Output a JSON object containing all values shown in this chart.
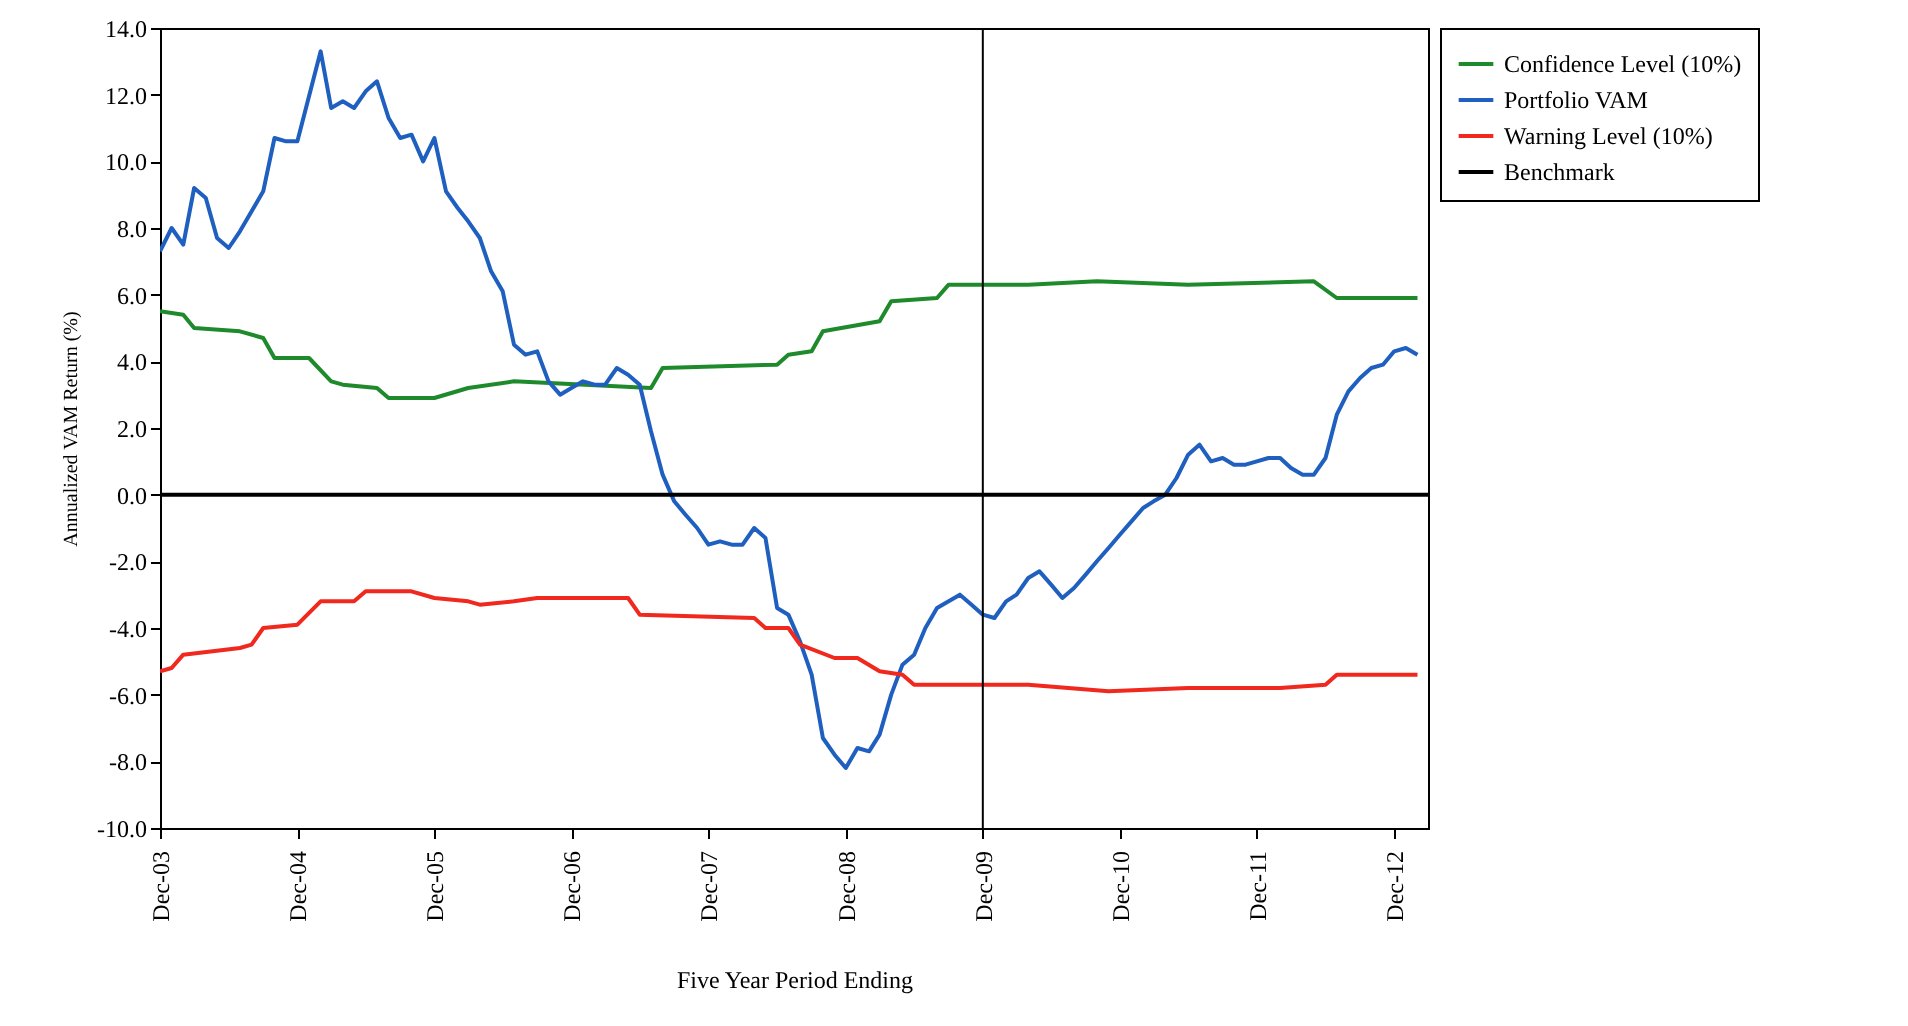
{
  "chart_data": {
    "type": "line",
    "xlabel": "Five Year Period Ending",
    "ylabel": "Annualized VAM Return (%)",
    "xlim": [
      "2003-12",
      "2013-03"
    ],
    "xticks": [
      {
        "value": "2003-12",
        "label": "Dec-03"
      },
      {
        "value": "2004-12",
        "label": "Dec-04"
      },
      {
        "value": "2005-12",
        "label": "Dec-05"
      },
      {
        "value": "2006-12",
        "label": "Dec-06"
      },
      {
        "value": "2007-12",
        "label": "Dec-07"
      },
      {
        "value": "2008-12",
        "label": "Dec-08"
      },
      {
        "value": "2009-12",
        "label": "Dec-09"
      },
      {
        "value": "2010-12",
        "label": "Dec-10"
      },
      {
        "value": "2011-12",
        "label": "Dec-11"
      },
      {
        "value": "2012-12",
        "label": "Dec-12"
      }
    ],
    "ylim": [
      -10,
      14
    ],
    "yticks": [
      {
        "value": -10,
        "label": "-10.0"
      },
      {
        "value": -8,
        "label": "-8.0"
      },
      {
        "value": -6,
        "label": "-6.0"
      },
      {
        "value": -4,
        "label": "-4.0"
      },
      {
        "value": -2,
        "label": "-2.0"
      },
      {
        "value": 0,
        "label": "0.0"
      },
      {
        "value": 2,
        "label": "2.0"
      },
      {
        "value": 4,
        "label": "4.0"
      },
      {
        "value": 6,
        "label": "6.0"
      },
      {
        "value": 8,
        "label": "8.0"
      },
      {
        "value": 10,
        "label": "10.0"
      },
      {
        "value": 12,
        "label": "12.0"
      },
      {
        "value": 14,
        "label": "14.0"
      }
    ],
    "legend": "right",
    "ref_lines": [
      {
        "axis": "x",
        "value": "2009-12",
        "color": "#000000"
      }
    ],
    "series": [
      {
        "name": "Confidence Level (10%)",
        "color": "#1e8a2c",
        "x": [
          "2003-12",
          "2004-02",
          "2004-03",
          "2004-07",
          "2004-09",
          "2004-10",
          "2005-01",
          "2005-03",
          "2005-04",
          "2005-07",
          "2005-08",
          "2005-12",
          "2006-03",
          "2006-07",
          "2007-07",
          "2007-08",
          "2008-06",
          "2008-07",
          "2008-09",
          "2008-10",
          "2009-03",
          "2009-04",
          "2009-08",
          "2009-09",
          "2010-04",
          "2010-10",
          "2011-06",
          "2012-05",
          "2012-07",
          "2013-02"
        ],
        "values": [
          5.5,
          5.4,
          5.0,
          4.9,
          4.7,
          4.1,
          4.1,
          3.4,
          3.3,
          3.2,
          2.9,
          2.9,
          3.2,
          3.4,
          3.2,
          3.8,
          3.9,
          4.2,
          4.3,
          4.9,
          5.2,
          5.8,
          5.9,
          6.3,
          6.3,
          6.4,
          6.3,
          6.4,
          5.9,
          5.9
        ]
      },
      {
        "name": "Portfolio VAM",
        "color": "#1f5fbf",
        "x": [
          "2003-12",
          "2004-01",
          "2004-02",
          "2004-03",
          "2004-04",
          "2004-05",
          "2004-06",
          "2004-07",
          "2004-09",
          "2004-10",
          "2004-11",
          "2004-12",
          "2005-02",
          "2005-03",
          "2005-04",
          "2005-05",
          "2005-06",
          "2005-07",
          "2005-08",
          "2005-09",
          "2005-10",
          "2005-11",
          "2005-12",
          "2006-01",
          "2006-02",
          "2006-03",
          "2006-04",
          "2006-05",
          "2006-06",
          "2006-07",
          "2006-08",
          "2006-09",
          "2006-10",
          "2006-11",
          "2006-12",
          "2007-01",
          "2007-02",
          "2007-03",
          "2007-04",
          "2007-05",
          "2007-06",
          "2007-07",
          "2007-08",
          "2007-09",
          "2007-10",
          "2007-11",
          "2007-12",
          "2008-01",
          "2008-02",
          "2008-03",
          "2008-04",
          "2008-05",
          "2008-06",
          "2008-07",
          "2008-08",
          "2008-09",
          "2008-10",
          "2008-11",
          "2008-12",
          "2009-01",
          "2009-02",
          "2009-03",
          "2009-04",
          "2009-05",
          "2009-06",
          "2009-07",
          "2009-08",
          "2009-09",
          "2009-10",
          "2009-11",
          "2009-12",
          "2010-01",
          "2010-02",
          "2010-03",
          "2010-04",
          "2010-05",
          "2010-06",
          "2010-07",
          "2010-08",
          "2010-09",
          "2010-10",
          "2010-11",
          "2010-12",
          "2011-01",
          "2011-02",
          "2011-03",
          "2011-04",
          "2011-05",
          "2011-06",
          "2011-07",
          "2011-08",
          "2011-09",
          "2011-10",
          "2011-11",
          "2011-12",
          "2012-01",
          "2012-02",
          "2012-03",
          "2012-04",
          "2012-05",
          "2012-06",
          "2012-07",
          "2012-08",
          "2012-09",
          "2012-10",
          "2012-11",
          "2012-12",
          "2013-01",
          "2013-02"
        ],
        "values": [
          7.3,
          8.0,
          7.5,
          9.2,
          8.9,
          7.7,
          7.4,
          7.9,
          9.1,
          10.7,
          10.6,
          10.6,
          13.3,
          11.6,
          11.8,
          11.6,
          12.1,
          12.4,
          11.3,
          10.7,
          10.8,
          10.0,
          10.7,
          9.1,
          8.6,
          8.2,
          7.7,
          6.7,
          6.1,
          4.5,
          4.2,
          4.3,
          3.4,
          3.0,
          3.2,
          3.4,
          3.3,
          3.3,
          3.8,
          3.6,
          3.3,
          1.9,
          0.6,
          -0.2,
          -0.6,
          -1.0,
          -1.5,
          -1.4,
          -1.5,
          -1.5,
          -1.0,
          -1.3,
          -3.4,
          -3.6,
          -4.4,
          -5.4,
          -7.3,
          -7.8,
          -8.2,
          -7.6,
          -7.7,
          -7.2,
          -6.0,
          -5.1,
          -4.8,
          -4.0,
          -3.4,
          -3.2,
          -3.0,
          -3.3,
          -3.6,
          -3.7,
          -3.2,
          -3.0,
          -2.5,
          -2.3,
          -2.7,
          -3.1,
          -2.8,
          -2.4,
          -2.0,
          -1.6,
          -1.2,
          -0.8,
          -0.4,
          -0.2,
          0.0,
          0.5,
          1.2,
          1.5,
          1.0,
          1.1,
          0.9,
          0.9,
          1.0,
          1.1,
          1.1,
          0.8,
          0.6,
          0.6,
          1.1,
          2.4,
          3.1,
          3.5,
          3.8,
          3.9,
          4.3,
          4.4,
          4.2
        ]
      },
      {
        "name": "Warning Level (10%)",
        "color": "#f0281e",
        "x": [
          "2003-12",
          "2004-01",
          "2004-02",
          "2004-07",
          "2004-08",
          "2004-09",
          "2004-12",
          "2005-02",
          "2005-05",
          "2005-06",
          "2005-10",
          "2005-12",
          "2006-03",
          "2006-04",
          "2006-07",
          "2006-09",
          "2007-05",
          "2007-06",
          "2008-04",
          "2008-05",
          "2008-07",
          "2008-08",
          "2008-11",
          "2009-01",
          "2009-03",
          "2009-05",
          "2009-06",
          "2010-04",
          "2010-11",
          "2011-06",
          "2012-02",
          "2012-06",
          "2012-07",
          "2013-02"
        ],
        "values": [
          -5.3,
          -5.2,
          -4.8,
          -4.6,
          -4.5,
          -4.0,
          -3.9,
          -3.2,
          -3.2,
          -2.9,
          -2.9,
          -3.1,
          -3.2,
          -3.3,
          -3.2,
          -3.1,
          -3.1,
          -3.6,
          -3.7,
          -4.0,
          -4.0,
          -4.5,
          -4.9,
          -4.9,
          -5.3,
          -5.4,
          -5.7,
          -5.7,
          -5.9,
          -5.8,
          -5.8,
          -5.7,
          -5.4,
          -5.4
        ]
      },
      {
        "name": "Benchmark",
        "color": "#000000",
        "x": [
          "2003-12",
          "2013-03"
        ],
        "values": [
          0,
          0
        ]
      }
    ]
  }
}
